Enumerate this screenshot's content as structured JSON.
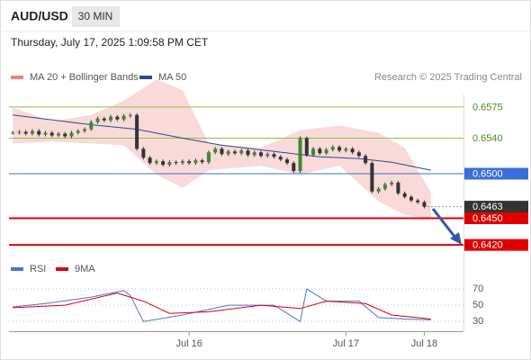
{
  "chart_data": [
    {
      "type": "candlestick",
      "title": "AUD/USD",
      "interval": "30 MIN",
      "subtitle": "Thursday, July 17, 2025 1:09:58 PM CET",
      "credit": "Research © 2025 Trading Central",
      "close": [
        0.6546,
        0.6547,
        0.6545,
        0.6548,
        0.6544,
        0.6546,
        0.6543,
        0.6545,
        0.6542,
        0.6546,
        0.6548,
        0.655,
        0.6558,
        0.6562,
        0.656,
        0.6564,
        0.6561,
        0.6565,
        0.6566,
        0.6528,
        0.6518,
        0.6512,
        0.6514,
        0.651,
        0.6513,
        0.6512,
        0.6514,
        0.6512,
        0.6515,
        0.6513,
        0.6524,
        0.6528,
        0.6522,
        0.6525,
        0.6523,
        0.6526,
        0.6521,
        0.6524,
        0.652,
        0.6522,
        0.6519,
        0.6516,
        0.6512,
        0.6503,
        0.654,
        0.6521,
        0.6528,
        0.6523,
        0.6527,
        0.653,
        0.6526,
        0.6528,
        0.6524,
        0.652,
        0.6512,
        0.648,
        0.6483,
        0.6488,
        0.649,
        0.6478,
        0.6474,
        0.647,
        0.6468,
        0.6463
      ],
      "up_color": "#3c8a2e",
      "down_color": "#333333",
      "bands": {
        "name": "MA 20 + Bollinger Bands",
        "color": "#f08080",
        "x": [
          0,
          6,
          12,
          17,
          22,
          26,
          30,
          38,
          44,
          50,
          56,
          60,
          64
        ],
        "upper": [
          0.6574,
          0.6559,
          0.6566,
          0.6582,
          0.6606,
          0.6594,
          0.6534,
          0.6529,
          0.6549,
          0.6554,
          0.6546,
          0.6529,
          0.6479
        ],
        "lower": [
          0.6534,
          0.6536,
          0.6534,
          0.6532,
          0.6499,
          0.6484,
          0.6504,
          0.6509,
          0.6499,
          0.6509,
          0.6469,
          0.6454,
          0.6449
        ]
      },
      "series": [
        {
          "name": "MA 50",
          "color": "#2a4a8c",
          "x": [
            0,
            12,
            19,
            26,
            32,
            40,
            47,
            53,
            58,
            64
          ],
          "values": [
            0.6566,
            0.6555,
            0.655,
            0.654,
            0.6532,
            0.6525,
            0.6519,
            0.6517,
            0.6513,
            0.6504
          ]
        }
      ],
      "levels": [
        {
          "value": 0.6575,
          "color": "#8cbf4a",
          "label_box": false
        },
        {
          "value": 0.654,
          "label": "0.6540",
          "color": "#8cbf4a",
          "label_box": false
        },
        {
          "value": 0.65,
          "label": "0.6500",
          "color": "#3a6fd8",
          "label_box": true
        },
        {
          "value": 0.6463,
          "color": "#333333",
          "label_box": true
        },
        {
          "value": 0.645,
          "label": "0.6450",
          "color": "#e00000",
          "label_box": true
        },
        {
          "value": 0.642,
          "label": "0.6420",
          "color": "#e00000",
          "label_box": true
        }
      ],
      "xlim": [
        -0.3,
        69
      ],
      "xticks": [
        {
          "value": 27,
          "label": "Jul 16"
        },
        {
          "value": 51,
          "label": "Jul 17"
        },
        {
          "value": 63,
          "label": "Jul 18"
        }
      ],
      "ylim": [
        0.6407,
        0.6589
      ]
    },
    {
      "type": "line",
      "series": [
        {
          "name": "RSI",
          "color": "#4a74d8",
          "x": [
            0,
            5,
            12,
            17,
            18,
            20,
            26,
            33,
            40,
            43,
            44,
            45,
            48,
            53,
            56,
            60,
            64
          ],
          "values": [
            48,
            52,
            60,
            68,
            62,
            30,
            38,
            50,
            50,
            35,
            30,
            70,
            55,
            55,
            35,
            33,
            32
          ]
        },
        {
          "name": "9MA",
          "color": "#e00000",
          "x": [
            0,
            8,
            16,
            20,
            24,
            30,
            38,
            44,
            48,
            54,
            58,
            64
          ],
          "values": [
            47,
            50,
            65,
            55,
            40,
            42,
            50,
            46,
            55,
            52,
            38,
            33
          ]
        }
      ],
      "xlim": [
        -0.3,
        69
      ],
      "ylim": [
        18,
        79
      ],
      "yticks": [
        30,
        50,
        70
      ]
    }
  ]
}
